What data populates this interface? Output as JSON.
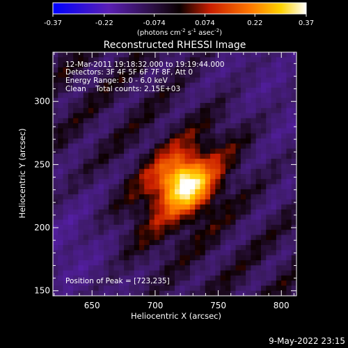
{
  "colorbar": {
    "ticks": [
      "-0.37",
      "-0.22",
      "-0.074",
      "0.074",
      "0.22",
      "0.37"
    ],
    "unit_main": "(photons cm",
    "unit_sup1": "-2",
    "unit_mid1": " s",
    "unit_sup2": "-1",
    "unit_mid2": " asec",
    "unit_sup3": "-2",
    "unit_end": ")"
  },
  "chart_data": {
    "type": "heatmap",
    "title": "Reconstructed RHESSI Image",
    "xlabel": "Heliocentric X (arcsec)",
    "ylabel": "Heliocentric Y (arcsec)",
    "xlim": [
      619,
      812
    ],
    "ylim": [
      146,
      339
    ],
    "x_ticks": [
      650,
      700,
      750,
      800
    ],
    "y_ticks": [
      150,
      200,
      250,
      300
    ],
    "x_tick_labels": [
      "650",
      "700",
      "750",
      "800"
    ],
    "y_tick_labels": [
      "150",
      "200",
      "250",
      "300"
    ],
    "value_range": [
      -0.37,
      0.37
    ],
    "colormap": "RHESSI blue-purple-red-yellow-white",
    "peak": [
      723,
      235
    ],
    "annotations": [
      "12-Mar-2011 19:18:32.000 to 19:19:44.000",
      "Detectors: 3F 4F 5F 6F 7F 8F, Att 0",
      "Energy Range: 3.0 - 6.0 keV",
      "Clean    Total counts: 2.15E+03"
    ],
    "peak_label": "Position of Peak = [723,235]"
  },
  "footer_date": "9-May-2022 23:15",
  "colors": {
    "cmap": [
      "#0000ff",
      "#5a1fb4",
      "#3c1864",
      "#0a0000",
      "#c81e00",
      "#ff7800",
      "#ffd200",
      "#ffffff"
    ]
  }
}
